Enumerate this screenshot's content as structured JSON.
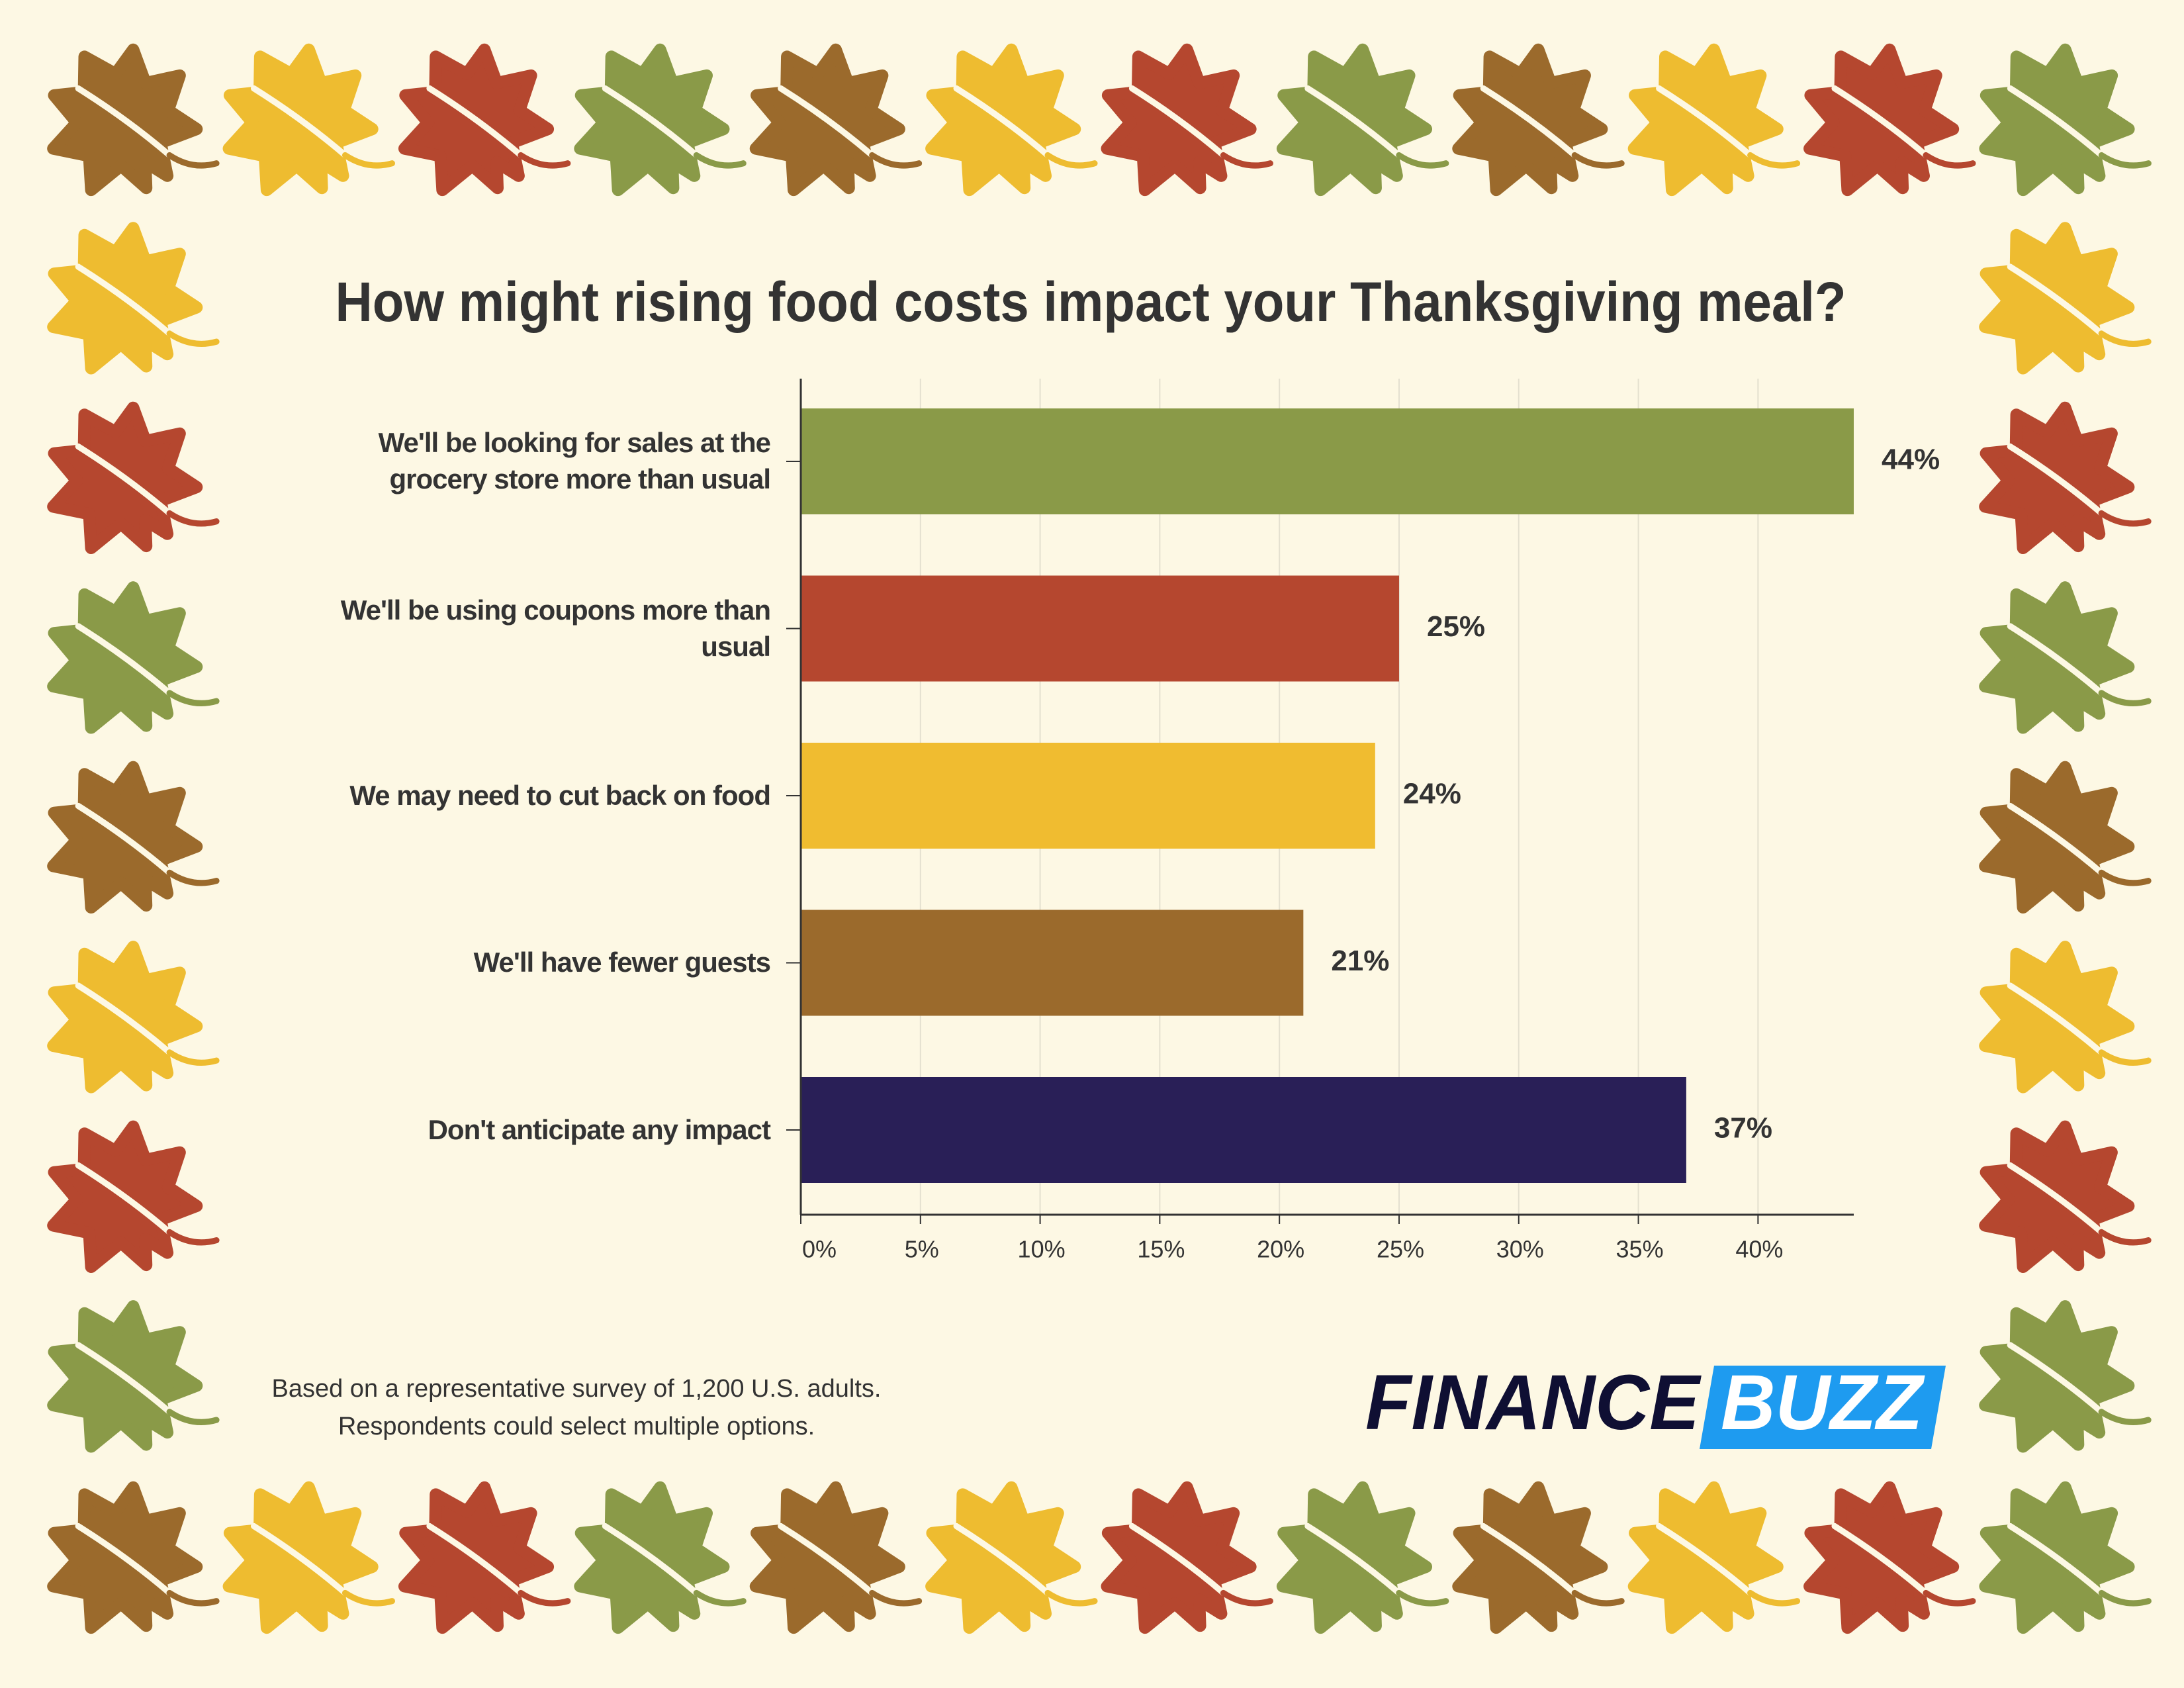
{
  "chart_data": {
    "type": "bar",
    "orientation": "horizontal",
    "title": "How might rising food costs impact your Thanksgiving meal?",
    "categories": [
      "We'll be looking for sales at the grocery store more than usual",
      "We'll be using coupons more than usual",
      "We may need to cut back on food",
      "We'll have fewer guests",
      "Don't anticipate any impact"
    ],
    "values": [
      44,
      25,
      24,
      21,
      37
    ],
    "value_labels": [
      "44%",
      "25%",
      "24%",
      "21%",
      "37%"
    ],
    "colors": [
      "#8a9a48",
      "#b5472f",
      "#f0bc30",
      "#9b6a2c",
      "#291f57"
    ],
    "xlim": [
      0,
      44
    ],
    "xticks": [
      {
        "value": 0,
        "label": "0%"
      },
      {
        "value": 5,
        "label": "5%"
      },
      {
        "value": 10,
        "label": "10%"
      },
      {
        "value": 15,
        "label": "15%"
      },
      {
        "value": 20,
        "label": "20%"
      },
      {
        "value": 25,
        "label": "25%"
      },
      {
        "value": 30,
        "label": "30%"
      },
      {
        "value": 35,
        "label": "35%"
      },
      {
        "value": 40,
        "label": "40%"
      }
    ],
    "grid": true,
    "footnote": [
      "Based on a representative survey of 1,200 U.S. adults.",
      "Respondents could select multiple options."
    ],
    "logo": [
      "FINANCE",
      "BUZZ"
    ]
  }
}
